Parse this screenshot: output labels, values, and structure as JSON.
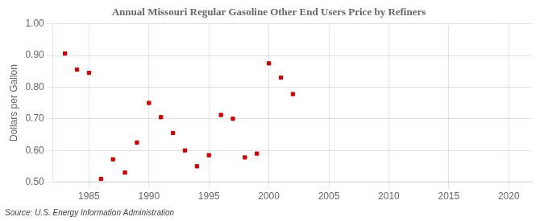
{
  "chart_data": {
    "type": "scatter",
    "title": "Annual Missouri Regular Gasoline Other End Users Price by Refiners",
    "y_label": "Dollars per Gallon",
    "annotations": [
      "Source: U.S. Energy Information Administration"
    ],
    "x": [
      1983,
      1984,
      1985,
      1986,
      1987,
      1988,
      1989,
      1990,
      1991,
      1992,
      1993,
      1994,
      1995,
      1996,
      1997,
      1998,
      1999,
      2000,
      2001,
      2002
    ],
    "values": [
      0.906,
      0.855,
      0.845,
      0.51,
      0.572,
      0.53,
      0.625,
      0.75,
      0.705,
      0.655,
      0.6,
      0.55,
      0.585,
      0.712,
      0.7,
      0.578,
      0.59,
      0.875,
      0.83,
      0.778
    ],
    "color": "#cc0000",
    "marker": "square",
    "xlim": [
      1982,
      2022
    ],
    "xticks": [
      1985,
      1990,
      1995,
      2000,
      2005,
      2010,
      2015,
      2020
    ],
    "ylim": [
      0.5,
      1.0
    ],
    "yticks": [
      {
        "value": 0.5,
        "label": "0.50"
      },
      {
        "value": 0.6,
        "label": "0.60"
      },
      {
        "value": 0.7,
        "label": "0.70"
      },
      {
        "value": 0.8,
        "label": "0.80"
      },
      {
        "value": 0.9,
        "label": "0.90"
      },
      {
        "value": 1.0,
        "label": "1.00"
      }
    ],
    "grid": true
  }
}
